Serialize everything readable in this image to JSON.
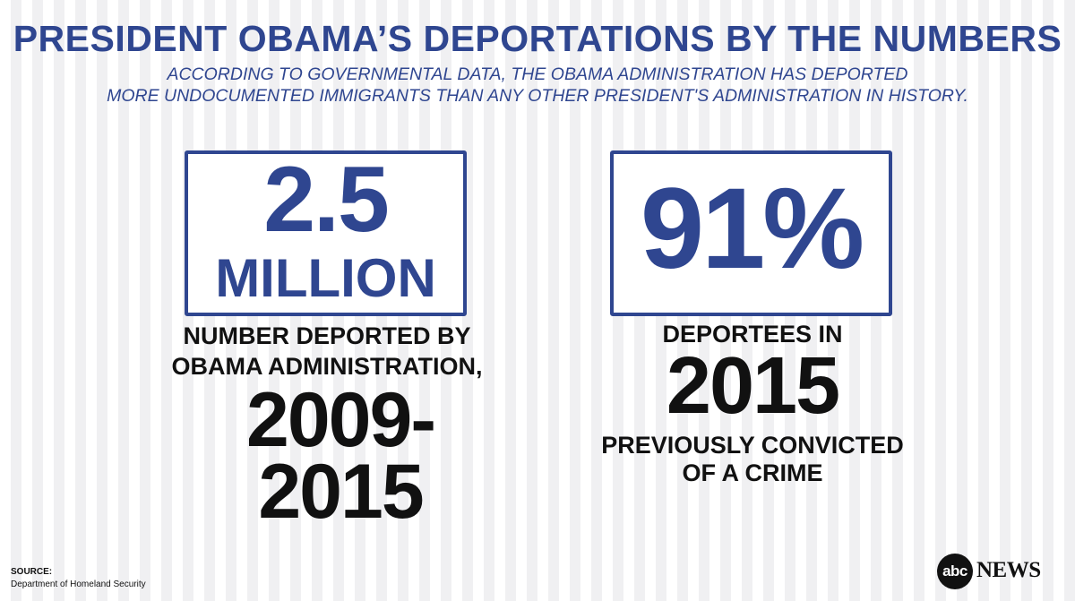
{
  "title": "PRESIDENT OBAMA’S DEPORTATIONS BY THE NUMBERS",
  "subtitle": {
    "line1": "ACCORDING TO GOVERNMENTAL DATA, THE OBAMA ADMINISTRATION HAS DEPORTED",
    "line2": "MORE UNDOCUMENTED IMMIGRANTS THAN ANY OTHER PRESIDENT'S ADMINISTRATION IN HISTORY."
  },
  "stat_left": {
    "value": "2.5",
    "unit": "MILLION",
    "caption_line1": "NUMBER DEPORTED BY",
    "caption_line2": "OBAMA ADMINISTRATION,",
    "years_line1": "2009-",
    "years_line2": "2015"
  },
  "stat_right": {
    "value": "91%",
    "caption_line1": "DEPORTEES IN",
    "year": "2015",
    "caption_line2": "PREVIOUSLY CONVICTED",
    "caption_line3": "OF A CRIME"
  },
  "source": {
    "label": "SOURCE:",
    "text": "Department of Homeland Security"
  },
  "brand": {
    "logo": "abc",
    "name": "NEWS"
  },
  "colors": {
    "accent": "#2f4690",
    "text": "#111111",
    "stripe": "#f0f0f2"
  }
}
